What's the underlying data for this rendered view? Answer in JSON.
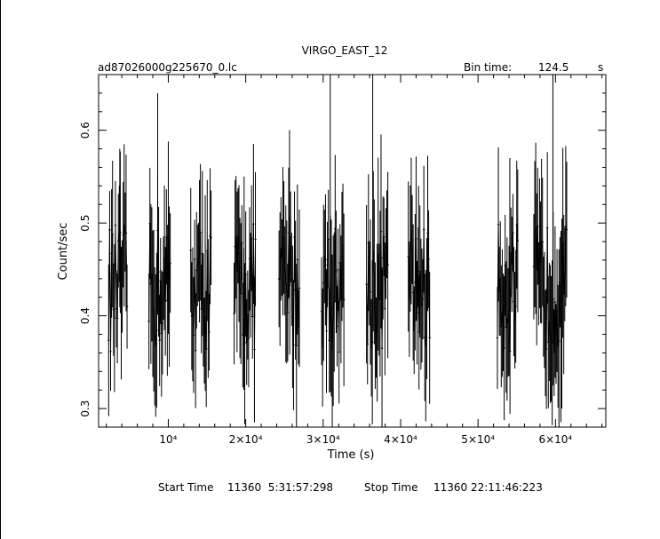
{
  "chart_data": {
    "type": "line",
    "title": "VIRGO_EAST_12",
    "filename": "ad87026000g225670_0.lc",
    "bin_time_label": "Bin time:",
    "bin_time_value": "124.5",
    "bin_time_unit": "s",
    "xlabel": "Time (s)",
    "ylabel": "Count/sec",
    "xlim": [
      1000,
      66500
    ],
    "ylim": [
      0.28,
      0.66
    ],
    "x_ticks": [
      {
        "value": 10000,
        "label": "10⁴"
      },
      {
        "value": 20000,
        "label": "2×10⁴"
      },
      {
        "value": 30000,
        "label": "3×10⁴"
      },
      {
        "value": 40000,
        "label": "4×10⁴"
      },
      {
        "value": 50000,
        "label": "5×10⁴"
      },
      {
        "value": 60000,
        "label": "6×10⁴"
      }
    ],
    "y_ticks": [
      {
        "value": 0.3,
        "label": "0.3"
      },
      {
        "value": 0.4,
        "label": "0.4"
      },
      {
        "value": 0.5,
        "label": "0.5"
      },
      {
        "value": 0.6,
        "label": "0.6"
      }
    ],
    "grid": false,
    "segments": [
      {
        "start": 2300,
        "end": 4700,
        "peak": 0.58
      },
      {
        "start": 7500,
        "end": 10300,
        "peak": 0.64
      },
      {
        "start": 12900,
        "end": 15600,
        "peak": 0.53
      },
      {
        "start": 18500,
        "end": 21300,
        "peak": 0.55
      },
      {
        "start": 24300,
        "end": 27000,
        "peak": 0.6
      },
      {
        "start": 29800,
        "end": 32700,
        "peak": 0.66
      },
      {
        "start": 35600,
        "end": 38400,
        "peak": 0.66
      },
      {
        "start": 41000,
        "end": 43800,
        "peak": 0.54
      },
      {
        "start": 52500,
        "end": 55200,
        "peak": 0.57
      },
      {
        "start": 57200,
        "end": 61500,
        "peak": 0.66
      }
    ],
    "footer": {
      "start_label": "Start Time",
      "start_value": "11360  5:31:57:298",
      "stop_label": "Stop Time",
      "stop_value": "11360 22:11:46:223"
    }
  }
}
